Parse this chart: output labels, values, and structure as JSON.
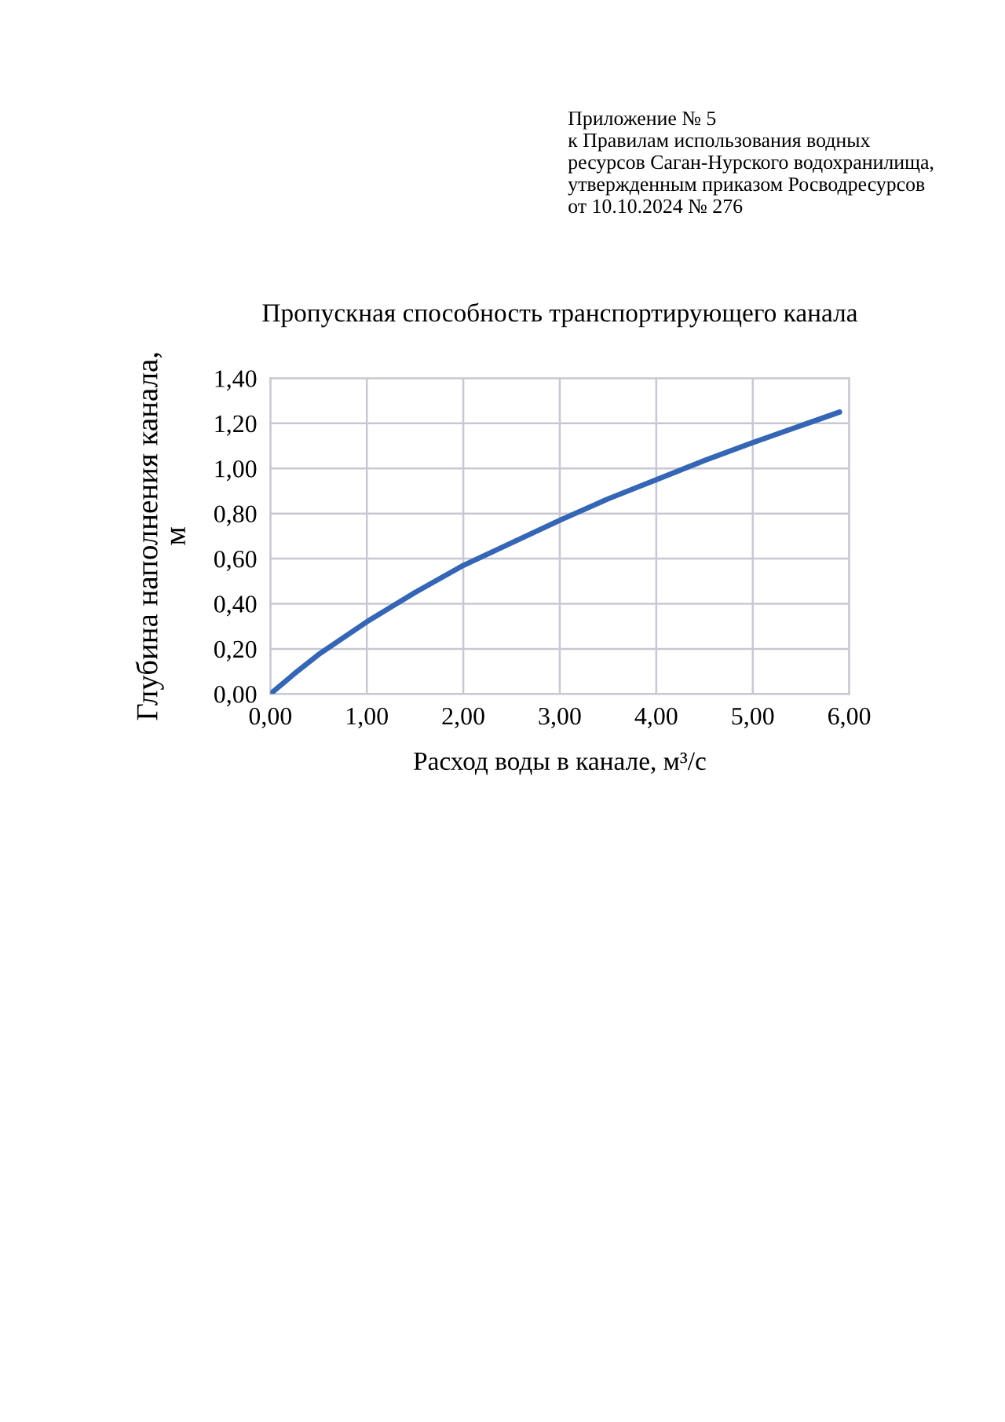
{
  "chart_data": {
    "type": "line",
    "title": "Пропускная способность транспортирующего канала",
    "xlabel": "Расход воды в канале, м³/с",
    "ylabel": "Глубина наполнения канала,\nм",
    "annotations": [
      "Приложение № 5\nк Правилам использования водных\nресурсов Саган-Нурского водохранилища,\nутвержденным приказом Росводресурсов\nот 10.10.2024 № 276"
    ],
    "series": [
      {
        "color": "#3565b5",
        "x": [
          0,
          0.25,
          0.5,
          1.0,
          1.5,
          2.0,
          2.5,
          3.0,
          3.5,
          4.0,
          4.5,
          5.0,
          5.5,
          5.9
        ],
        "values": [
          0,
          0.09,
          0.175,
          0.32,
          0.45,
          0.57,
          0.67,
          0.77,
          0.865,
          0.95,
          1.035,
          1.115,
          1.19,
          1.25
        ]
      }
    ],
    "xlim": [
      0,
      6
    ],
    "ylim": [
      0,
      1.4
    ],
    "xticks": [
      {
        "value": 0,
        "label": "0,00"
      },
      {
        "value": 1,
        "label": "1,00"
      },
      {
        "value": 2,
        "label": "2,00"
      },
      {
        "value": 3,
        "label": "3,00"
      },
      {
        "value": 4,
        "label": "4,00"
      },
      {
        "value": 5,
        "label": "5,00"
      },
      {
        "value": 6,
        "label": "6,00"
      }
    ],
    "yticks": [
      {
        "value": 0,
        "label": "0,00"
      },
      {
        "value": 0.2,
        "label": "0,20"
      },
      {
        "value": 0.4,
        "label": "0,40"
      },
      {
        "value": 0.6,
        "label": "0,60"
      },
      {
        "value": 0.8,
        "label": "0,80"
      },
      {
        "value": 1.0,
        "label": "1,00"
      },
      {
        "value": 1.2,
        "label": "1,20"
      },
      {
        "value": 1.4,
        "label": "1,40"
      }
    ],
    "grid": true,
    "legend": false,
    "marker": "none",
    "line_style": "solid"
  }
}
